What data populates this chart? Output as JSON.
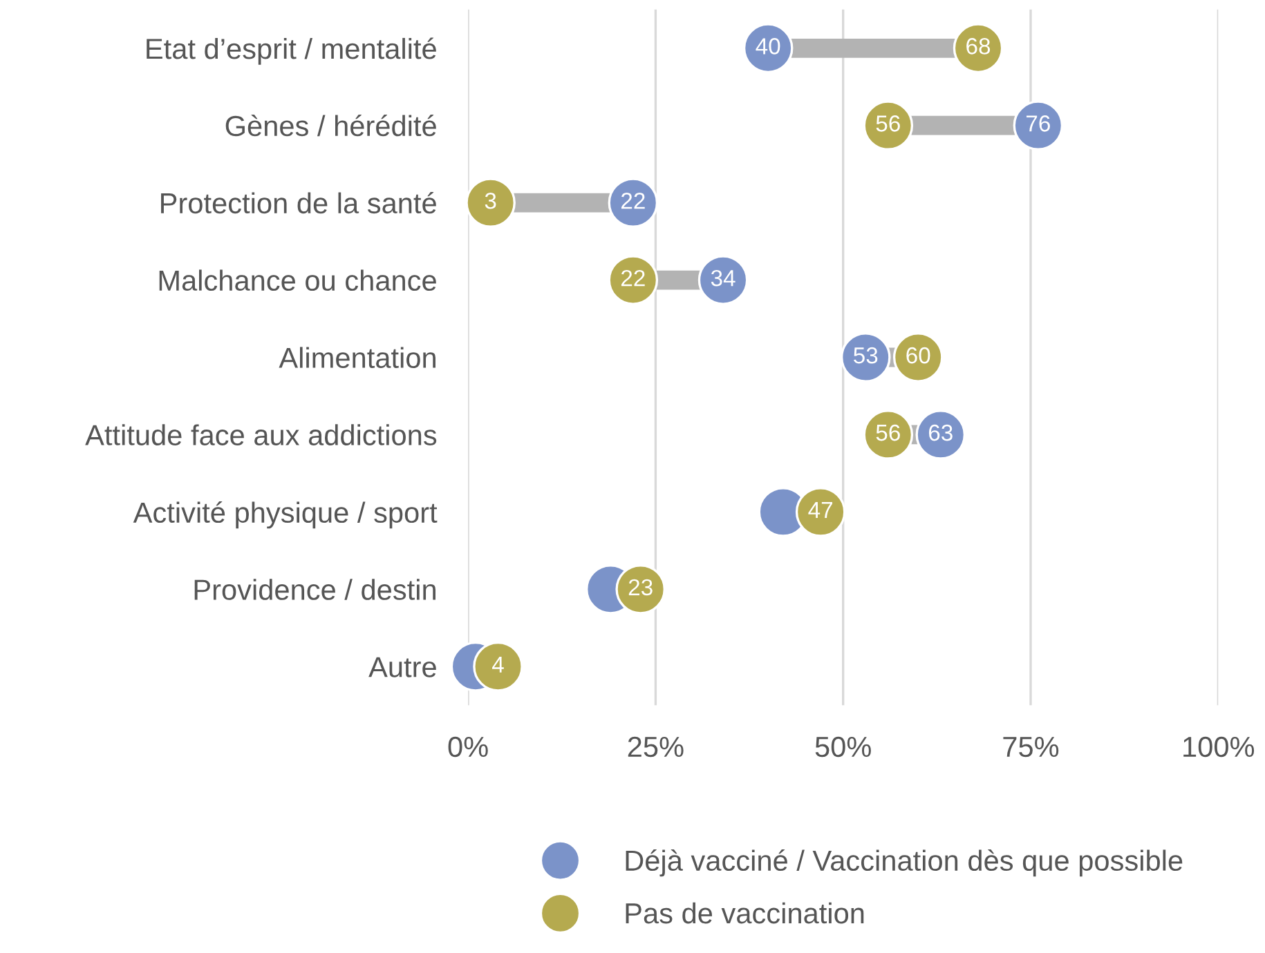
{
  "chart_data": {
    "type": "scatter",
    "orientation": "horizontal",
    "categories": [
      "Etat d’esprit / mentalité",
      "Gènes / hérédité",
      "Protection de la santé",
      "Malchance ou chance",
      "Alimentation",
      "Attitude face aux addictions",
      "Activité physique / sport",
      "Providence / destin",
      "Autre"
    ],
    "series": [
      {
        "name": "Déjà vacciné / Vaccination dès que possible",
        "color": "#7b93c9",
        "values": [
          40,
          76,
          22,
          34,
          53,
          63,
          42,
          19,
          1
        ],
        "value_labels": [
          "40",
          "76",
          "22",
          "34",
          "53",
          "63",
          null,
          null,
          null
        ]
      },
      {
        "name": "Pas de vaccination",
        "color": "#b5aa4f",
        "values": [
          68,
          56,
          3,
          22,
          60,
          56,
          47,
          23,
          4
        ],
        "value_labels": [
          "68",
          "56",
          "3",
          "22",
          "60",
          "56",
          "47",
          "23",
          "4"
        ]
      }
    ],
    "xlim": [
      0,
      100
    ],
    "xticks": [
      {
        "value": 0,
        "label": "0%"
      },
      {
        "value": 25,
        "label": "25%"
      },
      {
        "value": 50,
        "label": "50%"
      },
      {
        "value": 75,
        "label": "75%"
      },
      {
        "value": 100,
        "label": "100%"
      }
    ],
    "grid": "x",
    "legend": "bottom",
    "marker": "circle"
  }
}
